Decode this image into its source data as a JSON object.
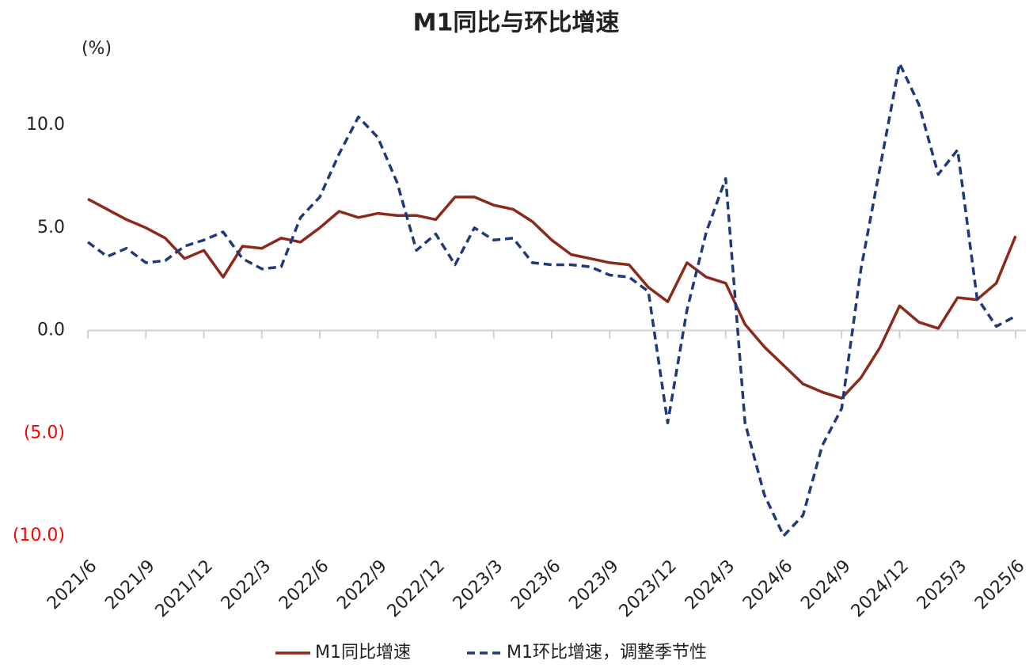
{
  "chart_data": {
    "type": "line",
    "title": "M1同比与环比增速",
    "y_unit_label": "(%)",
    "categories": [
      "2021/6",
      null,
      null,
      "2021/9",
      null,
      null,
      "2021/12",
      null,
      null,
      "2022/3",
      null,
      null,
      "2022/6",
      null,
      null,
      "2022/9",
      null,
      null,
      "2022/12",
      null,
      null,
      "2023/3",
      null,
      null,
      "2023/6",
      null,
      null,
      "2023/9",
      null,
      null,
      "2023/12",
      null,
      null,
      "2024/3",
      null,
      null,
      "2024/6",
      null,
      null,
      "2024/9",
      null,
      null,
      "2024/12",
      null,
      null,
      "2025/3",
      null,
      null,
      "2025/6"
    ],
    "series": [
      {
        "name": "M1同比增速",
        "color": "#8b2a1a",
        "line_style": "solid",
        "values": [
          6.4,
          5.9,
          5.4,
          5.0,
          4.5,
          3.5,
          3.9,
          2.6,
          4.1,
          4.0,
          4.5,
          4.3,
          5.0,
          5.8,
          5.5,
          5.7,
          5.6,
          5.6,
          5.4,
          6.5,
          6.5,
          6.1,
          5.9,
          5.3,
          4.4,
          3.7,
          3.5,
          3.3,
          3.2,
          2.1,
          1.4,
          3.3,
          2.6,
          2.3,
          0.3,
          -0.8,
          -1.7,
          -2.6,
          -3.0,
          -3.3,
          -2.3,
          -0.8,
          1.2,
          0.4,
          0.1,
          1.6,
          1.5,
          2.3,
          4.6
        ]
      },
      {
        "name": "M1环比增速，调整季节性",
        "color": "#1f3a7a",
        "line_style": "dashed",
        "values": [
          4.3,
          3.6,
          4.0,
          3.3,
          3.4,
          4.1,
          4.4,
          4.8,
          3.5,
          3.0,
          3.1,
          5.5,
          6.5,
          8.6,
          10.4,
          9.4,
          7.2,
          3.9,
          4.7,
          3.2,
          5.0,
          4.4,
          4.5,
          3.3,
          3.2,
          3.2,
          3.1,
          2.7,
          2.6,
          1.9,
          -4.5,
          1.0,
          4.8,
          7.4,
          -4.5,
          -8.0,
          -10.0,
          -9.0,
          -5.6,
          -3.8,
          3.0,
          8.0,
          13.0,
          11.0,
          7.6,
          8.8,
          1.6,
          0.2,
          0.7
        ]
      }
    ],
    "ylim": [
      -10,
      13.2
    ],
    "yticks": [
      {
        "value": 10,
        "label": "10.0"
      },
      {
        "value": 5,
        "label": "5.0"
      },
      {
        "value": 0,
        "label": "0.0"
      },
      {
        "value": -5,
        "label": "(5.0)"
      },
      {
        "value": -10,
        "label": "(10.0)"
      }
    ],
    "negative_tick_color": "#ff0000",
    "grid": false,
    "legend": "bottom"
  }
}
